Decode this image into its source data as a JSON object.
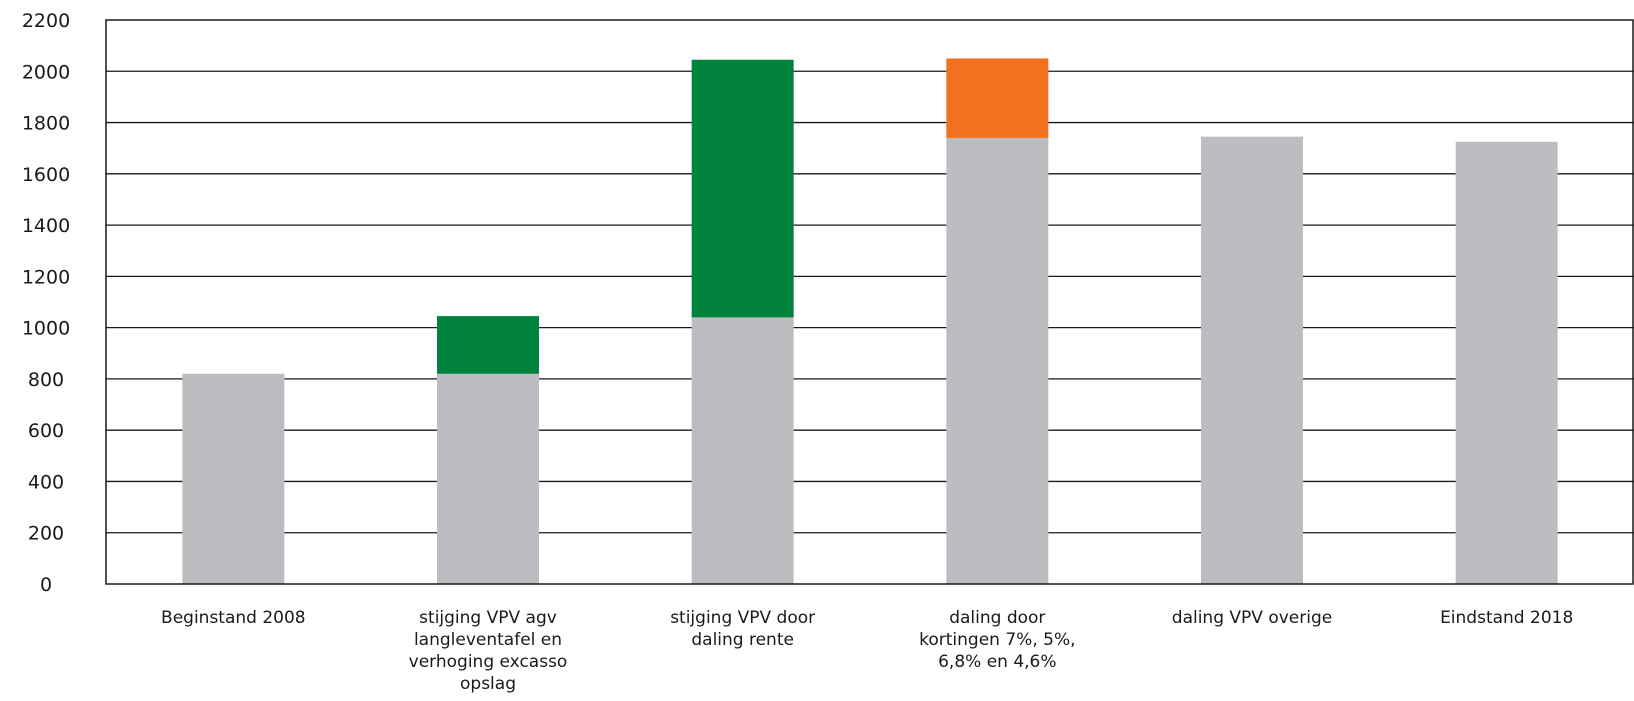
{
  "chart_data": {
    "type": "bar",
    "stacked": true,
    "title": "",
    "xlabel": "",
    "ylabel": "",
    "ylim": [
      0,
      2200
    ],
    "yticks": [
      0,
      200,
      400,
      600,
      800,
      1000,
      1200,
      1400,
      1600,
      1800,
      2000,
      2200
    ],
    "grid": "horizontal",
    "legend": "none",
    "categories": [
      [
        "Beginstand 2008"
      ],
      [
        "stijging VPV agv",
        "langleventafel en",
        "verhoging excasso",
        "opslag"
      ],
      [
        "stijging VPV door",
        "daling rente"
      ],
      [
        "daling door",
        "kortingen 7%, 5%,",
        "6,8% en 4,6%"
      ],
      [
        "daling VPV overige"
      ],
      [
        "Eindstand 2018"
      ]
    ],
    "series": [
      {
        "color": "#bcbdc0",
        "values": [
          820,
          820,
          1040,
          1740,
          1745,
          1725
        ]
      },
      {
        "color": "#00843d",
        "values": [
          0,
          225,
          1005,
          0,
          0,
          0
        ]
      },
      {
        "color": "#f37021",
        "values": [
          0,
          0,
          0,
          310,
          0,
          0
        ]
      }
    ]
  }
}
